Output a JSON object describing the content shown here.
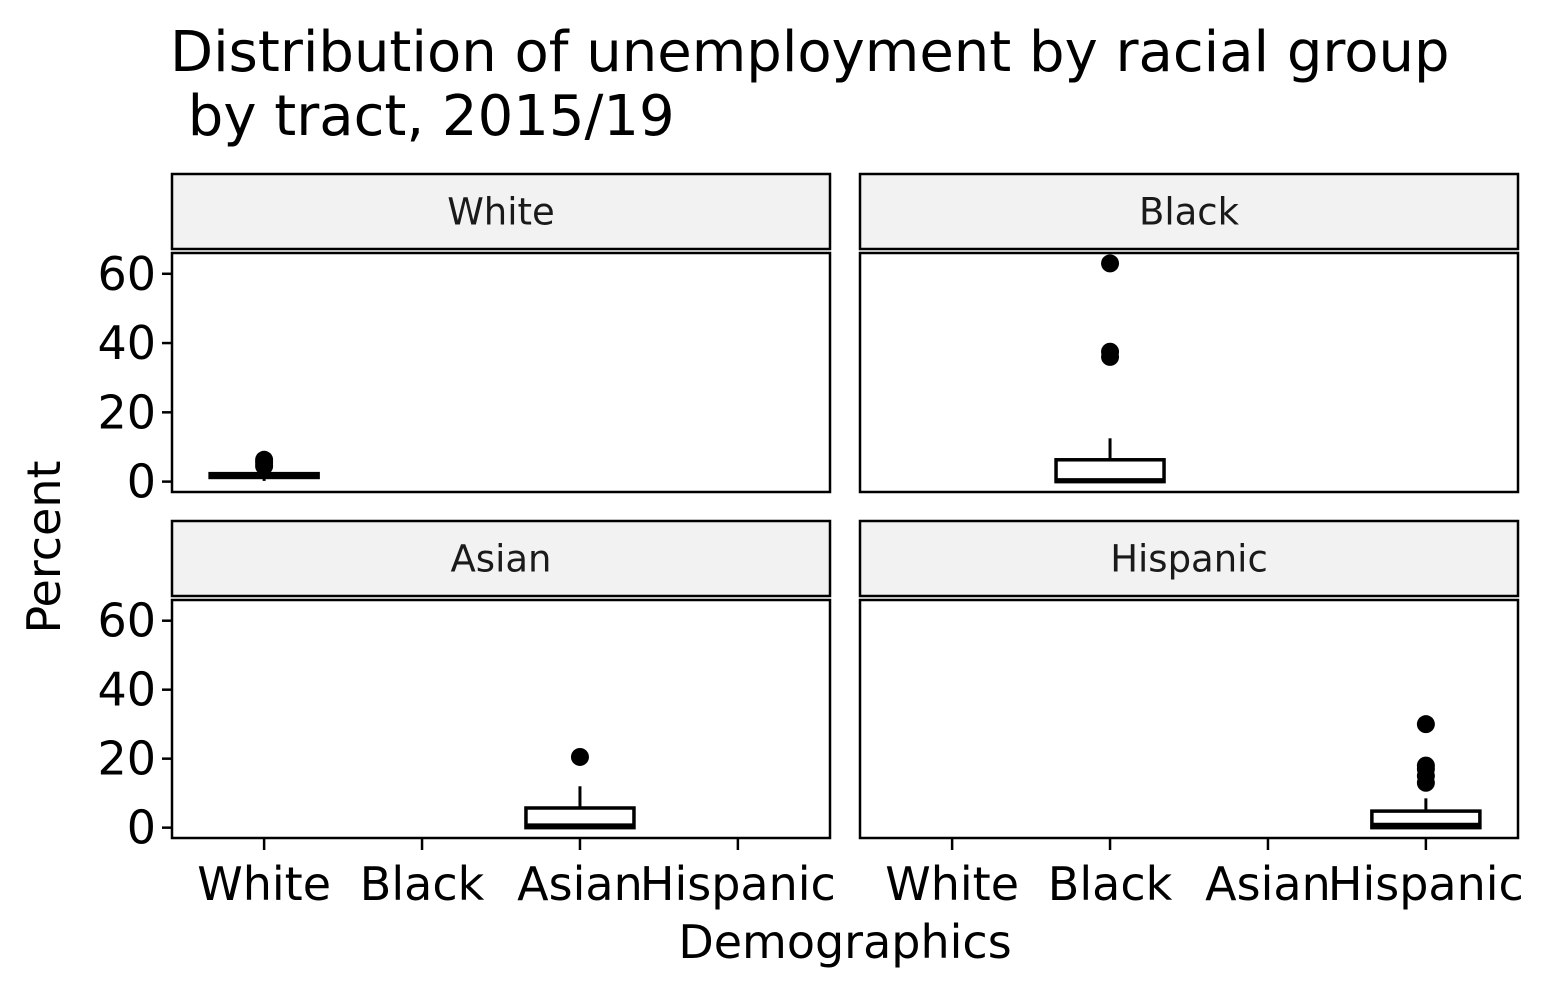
{
  "chart_data": {
    "type": "boxplot",
    "title": "Distribution of unemployment by racial group",
    "subtitle": " by tract, 2015/19",
    "xlabel": "Demographics",
    "ylabel": "Percent",
    "categories": [
      "White",
      "Black",
      "Asian",
      "Hispanic"
    ],
    "yticks": [
      0,
      20,
      40,
      60
    ],
    "ylim": [
      -3,
      66
    ],
    "layout": "2x2 facets",
    "grid": false,
    "panels": [
      {
        "facet": "White",
        "category": "White",
        "box": {
          "q1": 1.2,
          "median": 1.8,
          "q3": 2.3,
          "whisker_low": 0.2,
          "whisker_high": 3.5
        },
        "outliers": [
          4.5,
          5.5,
          6.3
        ]
      },
      {
        "facet": "Black",
        "category": "Black",
        "box": {
          "q1": 0,
          "median": 0.3,
          "q3": 6.3,
          "whisker_low": 0,
          "whisker_high": 12.5
        },
        "outliers": [
          36,
          37.5,
          63
        ]
      },
      {
        "facet": "Asian",
        "category": "Asian",
        "box": {
          "q1": 0,
          "median": 0.5,
          "q3": 5.7,
          "whisker_low": 0,
          "whisker_high": 12
        },
        "outliers": [
          20.5
        ]
      },
      {
        "facet": "Hispanic",
        "category": "Hispanic",
        "box": {
          "q1": 0,
          "median": 0.7,
          "q3": 4.8,
          "whisker_low": 0,
          "whisker_high": 8.5
        },
        "outliers": [
          13,
          15,
          17,
          18,
          30
        ]
      }
    ]
  }
}
